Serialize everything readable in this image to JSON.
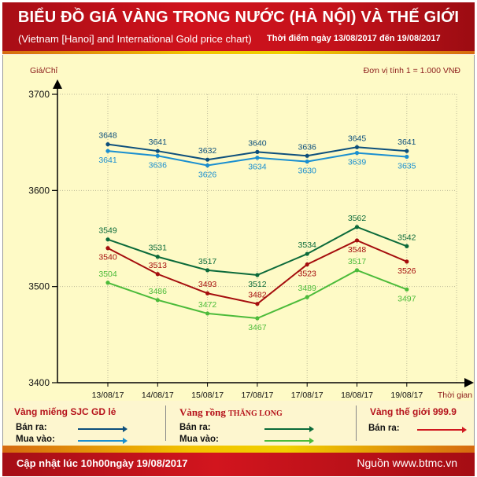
{
  "header": {
    "title": "BIỂU ĐỒ GIÁ VÀNG TRONG NƯỚC (HÀ NỘI) VÀ THẾ GIỚI",
    "subtitle": "(Vietnam [Hanoi] and International Gold price chart)",
    "period": "Thời điểm ngày 13/08/2017 đến 19/08/2017"
  },
  "chart": {
    "ylabel": "Giá/Chỉ",
    "unit_note": "Đơn vị tính 1 = 1.000 VNĐ",
    "xlabel": "Thời gian",
    "yticks": [
      "3700",
      "3600",
      "3500",
      "3400"
    ],
    "xticks": [
      "13/08/17",
      "14/08/17",
      "15/08/17",
      "17/08/17",
      "17/08/17",
      "18/08/17",
      "19/08/17"
    ]
  },
  "legend": {
    "sjc": {
      "title": "Vàng miếng SJC GD lẻ",
      "sell": "Bán ra:",
      "buy": "Mua vào:"
    },
    "thanglong": {
      "title_a": "Vàng rồng ",
      "title_b": "THĂNG LONG",
      "sell": "Bán ra:",
      "buy": "Mua vào:"
    },
    "world": {
      "title": "Vàng thế giới 999.9",
      "sell": "Bán ra:"
    }
  },
  "footer": {
    "updated": "Cập nhật lúc 10h00ngày 19/08/2017",
    "source": "Nguồn www.btmc.vn"
  },
  "colors": {
    "sjc_sell": "#0d4f7c",
    "sjc_buy": "#1a8fd0",
    "tl_sell": "#0b6a3a",
    "tl_buy": "#4cbb3a",
    "world_sell": "#a50d0d",
    "header_red": "#c4121b",
    "chart_bg": "#fefac6"
  },
  "chart_data": {
    "type": "line",
    "title": "BIỂU ĐỒ GIÁ VÀNG TRONG NƯỚC (HÀ NỘI) VÀ THẾ GIỚI",
    "subtitle": "(Vietnam [Hanoi] and International Gold price chart) Thời điểm ngày 13/08/2017 đến 19/08/2017",
    "xlabel": "Thời gian",
    "ylabel": "Giá/Chỉ",
    "unit": "Đơn vị tính 1 = 1.000 VNĐ",
    "categories": [
      "13/08/17",
      "14/08/17",
      "15/08/17",
      "17/08/17",
      "17/08/17",
      "18/08/17",
      "19/08/17"
    ],
    "ylim": [
      3400,
      3700
    ],
    "yticks": [
      3400,
      3500,
      3600,
      3700
    ],
    "grid": true,
    "legend_position": "bottom",
    "series": [
      {
        "name": "Vàng miếng SJC GD lẻ - Bán ra",
        "color": "#0d4f7c",
        "values": [
          3648,
          3641,
          3632,
          3640,
          3636,
          3645,
          3641
        ]
      },
      {
        "name": "Vàng miếng SJC GD lẻ - Mua vào",
        "color": "#1a8fd0",
        "values": [
          3641,
          3636,
          3626,
          3634,
          3630,
          3639,
          3635
        ]
      },
      {
        "name": "Vàng rồng THĂNG LONG - Bán ra",
        "color": "#0b6a3a",
        "values": [
          3549,
          3531,
          3517,
          3512,
          3534,
          3562,
          3542
        ]
      },
      {
        "name": "Vàng rồng THĂNG LONG - Mua vào",
        "color": "#4cbb3a",
        "values": [
          3504,
          3486,
          3472,
          3467,
          3489,
          3517,
          3497
        ]
      },
      {
        "name": "Vàng thế giới 999.9 - Bán ra",
        "color": "#a50d0d",
        "values": [
          3540,
          3513,
          3493,
          3482,
          3523,
          3548,
          3526
        ]
      }
    ]
  }
}
